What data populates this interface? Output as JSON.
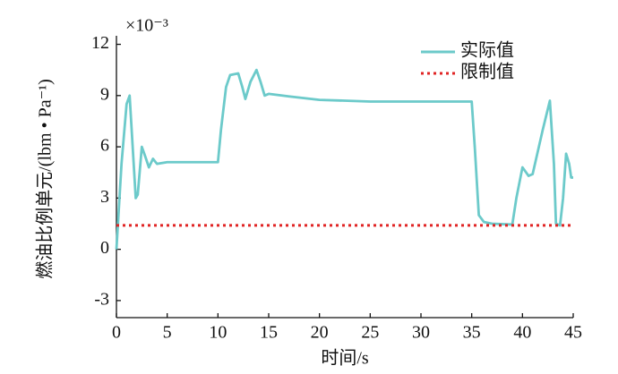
{
  "chart_data": {
    "type": "line",
    "y_multiplier": "×10⁻³",
    "xlabel": "时间/s",
    "ylabel": "燃油比例单元/(lbm • Pa⁻¹)",
    "xlim": [
      0,
      45
    ],
    "ylim": [
      -4,
      12.5
    ],
    "xticks": [
      0,
      5,
      10,
      15,
      20,
      25,
      30,
      35,
      40,
      45
    ],
    "yticks": [
      -3,
      0,
      3,
      6,
      9,
      12
    ],
    "legend": "upper right",
    "series": [
      {
        "name": "实际值",
        "color": "#6ccaca",
        "style": "solid",
        "x": [
          0,
          0.5,
          1,
          1.3,
          1.6,
          1.9,
          2.1,
          2.5,
          2.8,
          3.2,
          3.6,
          4,
          5,
          7,
          10,
          10.3,
          10.8,
          11.2,
          12,
          12.4,
          12.7,
          13.2,
          13.8,
          14.2,
          14.6,
          15,
          17,
          20,
          25,
          30,
          35,
          35.3,
          35.7,
          36.2,
          37,
          39,
          39.4,
          40,
          40.6,
          41,
          42,
          42.7,
          43.1,
          43.3,
          43.7,
          44,
          44.3,
          44.6,
          44.8,
          45
        ],
        "values": [
          0,
          5,
          8.5,
          9,
          6,
          3,
          3.2,
          6,
          5.5,
          4.8,
          5.3,
          5.0,
          5.1,
          5.1,
          5.1,
          7,
          9.5,
          10.2,
          10.3,
          9.5,
          8.8,
          9.8,
          10.5,
          9.8,
          9.0,
          9.1,
          8.95,
          8.75,
          8.65,
          8.65,
          8.65,
          6,
          2,
          1.6,
          1.5,
          1.45,
          3,
          4.8,
          4.3,
          4.4,
          7,
          8.7,
          5,
          1.5,
          1.4,
          3,
          5.6,
          5,
          4.2,
          4.2
        ]
      },
      {
        "name": "限制值",
        "color": "#e02424",
        "style": "dotted",
        "x": [
          0,
          45
        ],
        "values": [
          1.4,
          1.4
        ]
      }
    ]
  }
}
